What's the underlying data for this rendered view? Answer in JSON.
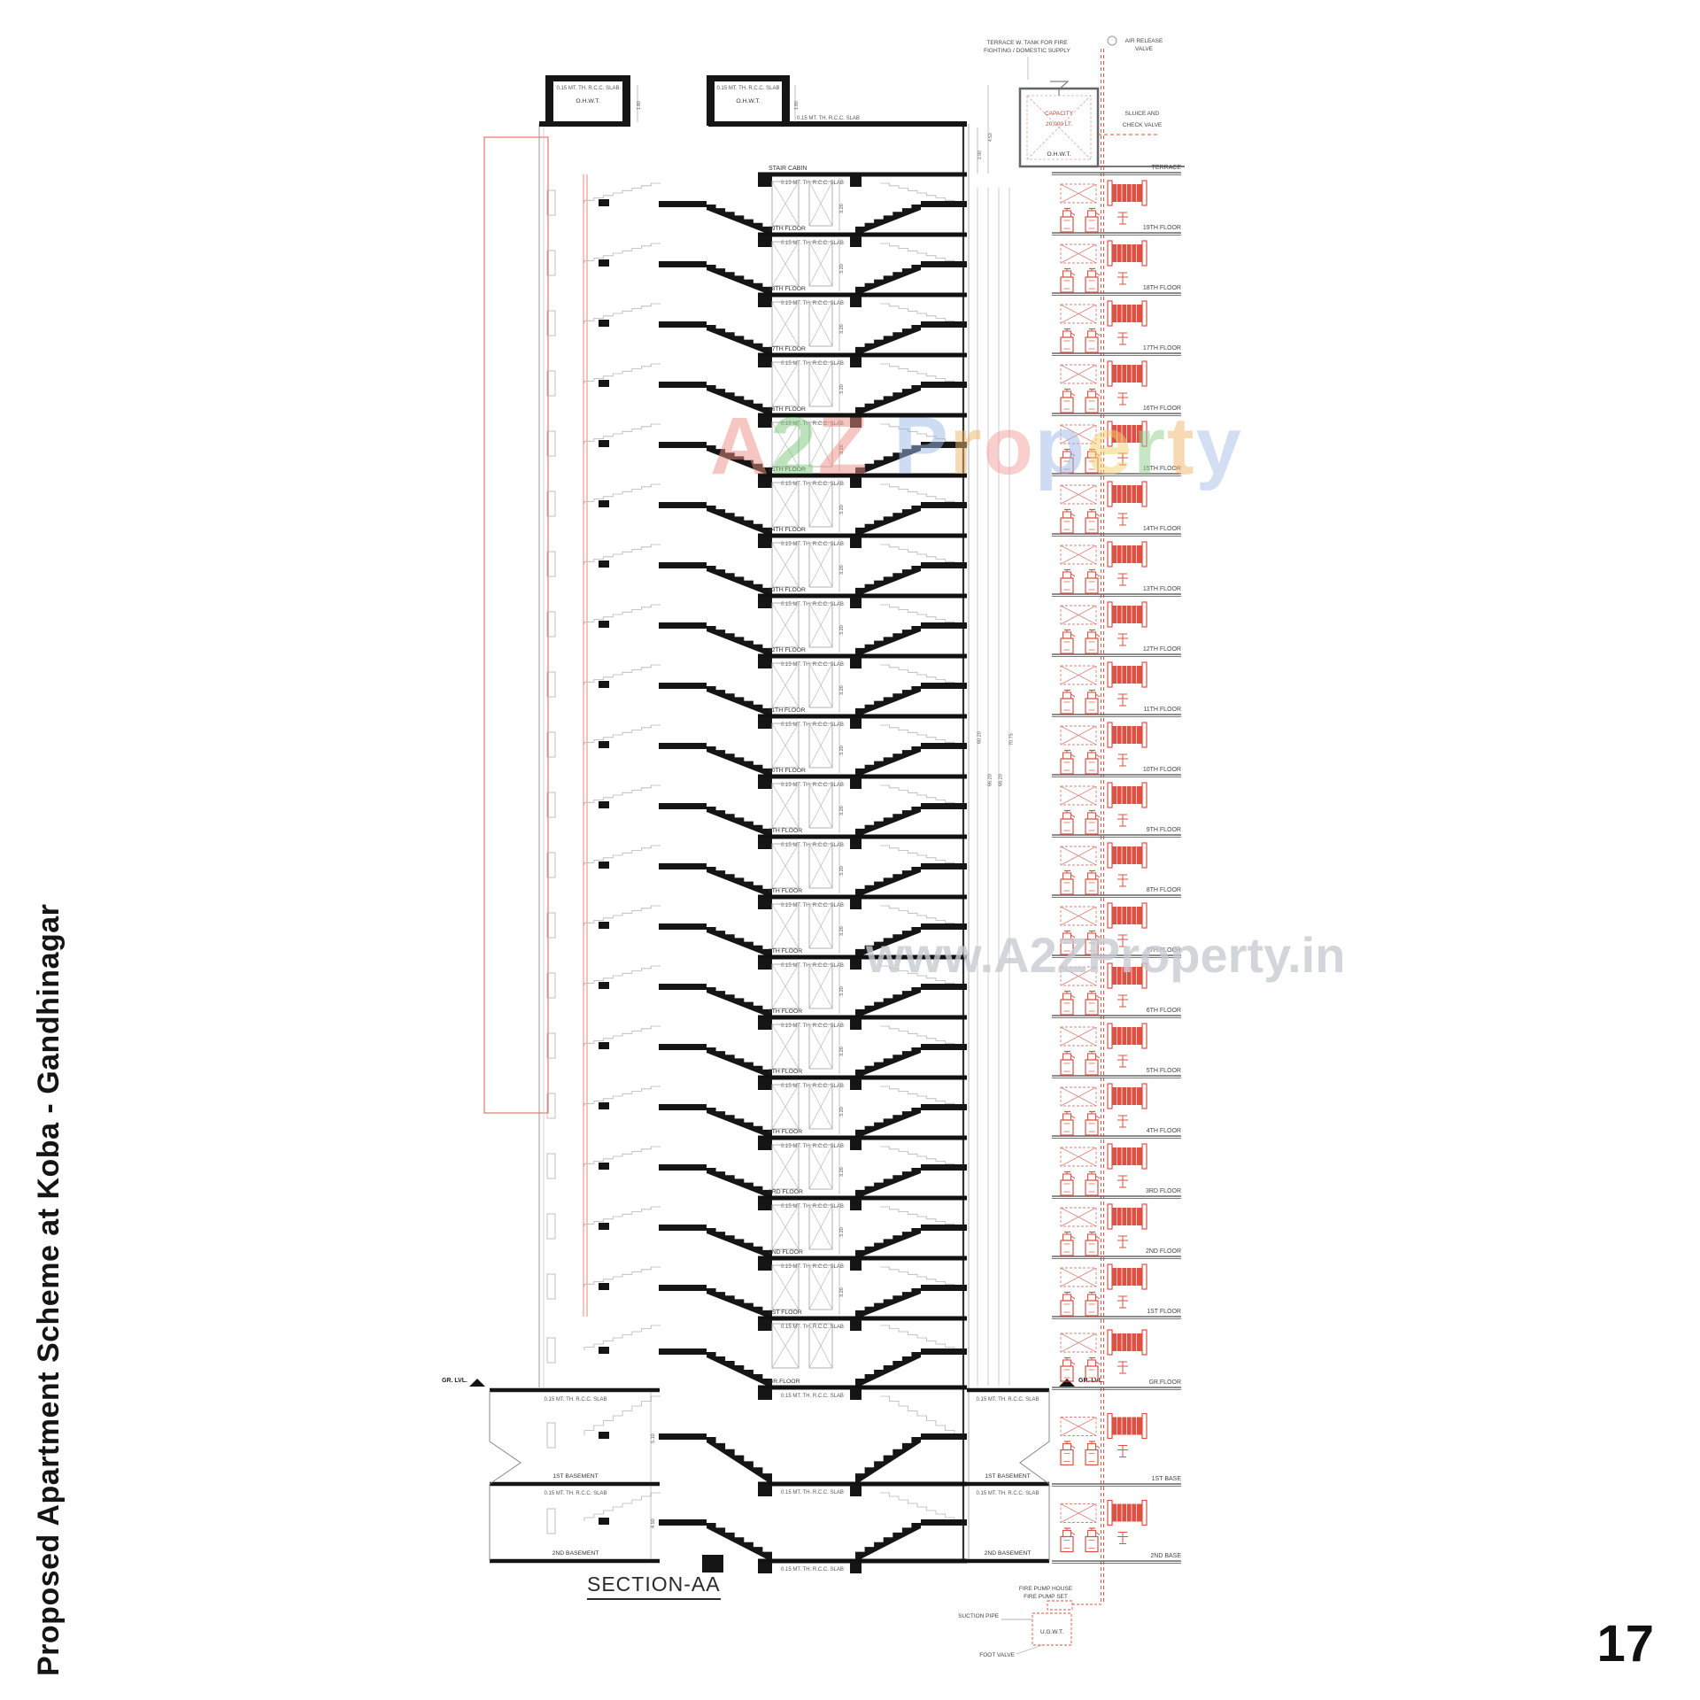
{
  "page": {
    "title_vertical": "Proposed Apartment  Scheme at Koba - Gandhinagar",
    "section_title": "SECTION-AA",
    "page_number": "17"
  },
  "watermark": {
    "text": "A2Z Property",
    "letters": [
      [
        "A",
        "#ef8f86"
      ],
      [
        "2",
        "#7cc87c"
      ],
      [
        "Z",
        "#ef8f86"
      ],
      [
        " ",
        ""
      ],
      [
        "P",
        "#9db8e8"
      ],
      [
        "r",
        "#f0b46a"
      ],
      [
        "o",
        "#f3a09a"
      ],
      [
        "p",
        "#9db8e8"
      ],
      [
        "e",
        "#f5d06e"
      ],
      [
        "r",
        "#8fcf8f"
      ],
      [
        "t",
        "#f0b46a"
      ],
      [
        "y",
        "#a8bfe8"
      ]
    ],
    "url_text": "www.A2ZProperty.in"
  },
  "colors": {
    "line": "#151515",
    "red": "#dd5145",
    "dim": "#555555",
    "gray": "#999999"
  },
  "section": {
    "slab_label": "0.15 MT. TH. R.C.C. SLAB",
    "ohwt": "O.H.W.T.",
    "stair_cabin": "STAIR CABIN",
    "floors": [
      "19TH FLOOR",
      "18TH FLOOR",
      "17TH FLOOR",
      "16TH FLOOR",
      "15TH FLOOR",
      "14TH FLOOR",
      "13TH FLOOR",
      "12TH FLOOR",
      "11TH FLOOR",
      "10TH FLOOR",
      "9TH FLOOR",
      "8TH FLOOR",
      "7TH FLOOR",
      "6TH FLOOR",
      "5TH FLOOR",
      "4TH FLOOR",
      "3RD FLOOR",
      "2ND FLOOR",
      "1ST FLOOR"
    ],
    "ground_floor": "GR.FLOOR",
    "gr_lvl": "GR. LVL.",
    "basement1": "1ST BASEMENT",
    "basement2": "2ND BASEMENT",
    "dims": {
      "floor_height": "3.20",
      "tank_height": "1.80",
      "top1": "2.90",
      "top2": "4.53",
      "b1": "5.10",
      "b2": "4.50",
      "overall": [
        "60.20",
        "66.20",
        "68.20",
        "70.75"
      ]
    }
  },
  "tank": {
    "note1": "TERRACE W. TANK FOR FIRE",
    "note2": "FIGHTING / DOMESTIC SUPPLY",
    "air1": "AIR RELEASE",
    "air2": "VALVE",
    "sluice1": "SLUICE AND",
    "sluice2": "CHECK VALVE",
    "capacity1": "CAPACITY",
    "capacity2": "20,000 LT.",
    "ohwt": "O.H.W.T."
  },
  "riser": {
    "floors": [
      "TERRACE",
      "19TH FLOOR",
      "18TH FLOOR",
      "17TH FLOOR",
      "16TH FLOOR",
      "15TH FLOOR",
      "14TH FLOOR",
      "13TH FLOOR",
      "12TH FLOOR",
      "11TH FLOOR",
      "10TH FLOOR",
      "9TH FLOOR",
      "8TH FLOOR",
      "7TH FLOOR",
      "6TH FLOOR",
      "5TH FLOOR",
      "4TH FLOOR",
      "3RD FLOOR",
      "2ND FLOOR",
      "1ST FLOOR",
      "GR.FLOOR",
      "1ST BASE",
      "2ND BASE"
    ]
  },
  "pump": {
    "l1": "FIRE PUMP HOUSE",
    "l2": "FIRE PUMP SET",
    "suction": "SUCTION PIPE",
    "ugwt": "U.G.W.T.",
    "foot": "FOOT VALVE"
  }
}
